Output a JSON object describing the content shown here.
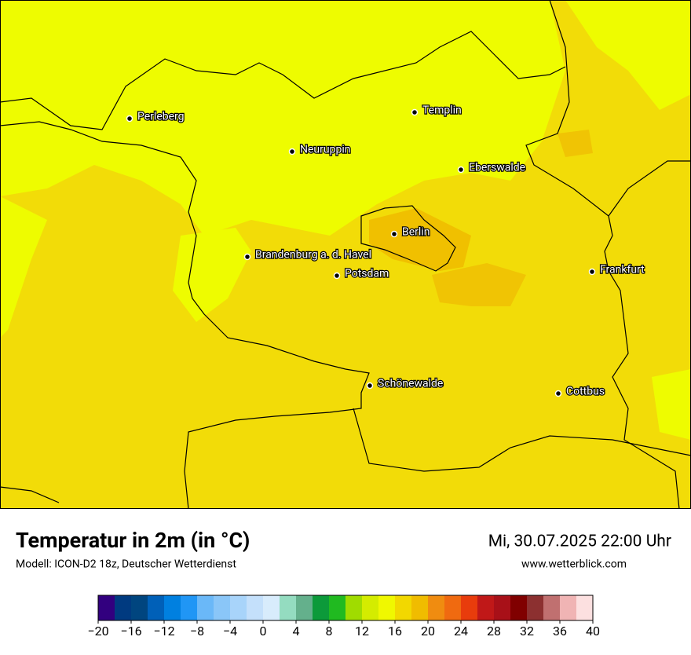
{
  "header": {
    "title": "Temperatur in 2m (in °C)",
    "subtitle": "Modell: ICON-D2 18z, Deutscher Wetterdienst",
    "date": "Mi, 30.07.2025 22:00 Uhr",
    "website": "www.wetterblick.com"
  },
  "cities": [
    "Perleberg",
    "Templin",
    "Neuruppin",
    "Eberswalde",
    "Berlin",
    "Brandenburg a. d. Havel",
    "Potsdam",
    "Frankfurt",
    "Schönewalde",
    "Cottbus"
  ],
  "colorbar": {
    "lim": [
      -20,
      40
    ],
    "colors": [
      "#32007f",
      "#003a80",
      "#00457f",
      "#0060b8",
      "#0080e0",
      "#2096f5",
      "#6ab8f8",
      "#8ac6f8",
      "#a8d4fa",
      "#c4e0fb",
      "#d8ecfc",
      "#94dcc0",
      "#64b08c",
      "#0c9a3a",
      "#20ba20",
      "#a0dc00",
      "#d4ec00",
      "#f0f800",
      "#f2d800",
      "#f0bc00",
      "#f08c10",
      "#f06a10",
      "#e83c0c",
      "#c01818",
      "#a81018",
      "#800000",
      "#8c3030",
      "#c07070",
      "#f0b4b4",
      "#fce0e0"
    ],
    "ticks": [
      {
        "value": -20,
        "label": "−20"
      },
      {
        "value": -16,
        "label": "−16"
      },
      {
        "value": -12,
        "label": "−12"
      },
      {
        "value": -8,
        "label": "−8"
      },
      {
        "value": -4,
        "label": "−4"
      },
      0,
      4,
      8,
      12,
      16,
      20,
      24,
      28,
      32,
      36,
      40
    ]
  }
}
